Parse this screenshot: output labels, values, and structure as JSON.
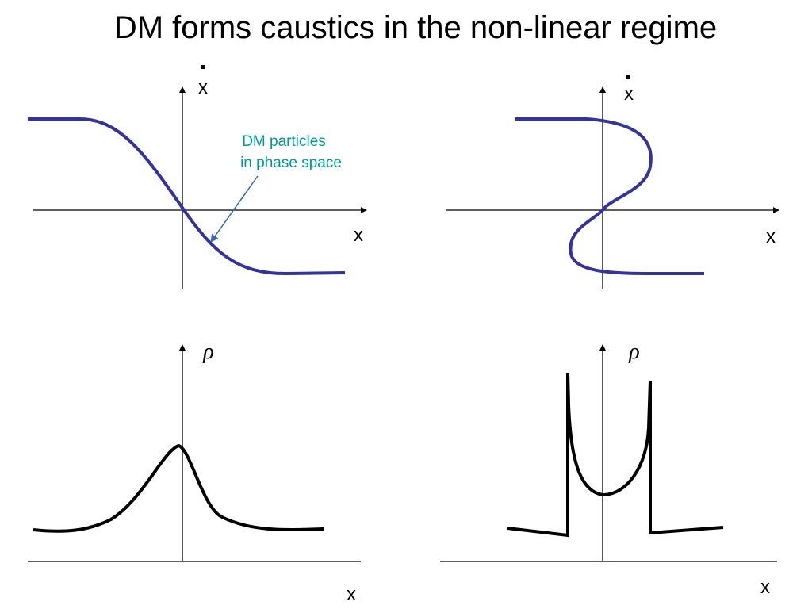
{
  "title": "DM  forms  caustics in the non-linear regime",
  "annotation": {
    "lines": [
      "DM  particles",
      "in phase space"
    ]
  },
  "panels": [
    {
      "y_label": "x",
      "x_label": "x"
    },
    {
      "y_label": "x",
      "x_label": "x"
    },
    {
      "y_label": "ρ",
      "x_label": "x"
    },
    {
      "y_label": "ρ",
      "x_label": "x"
    }
  ]
}
